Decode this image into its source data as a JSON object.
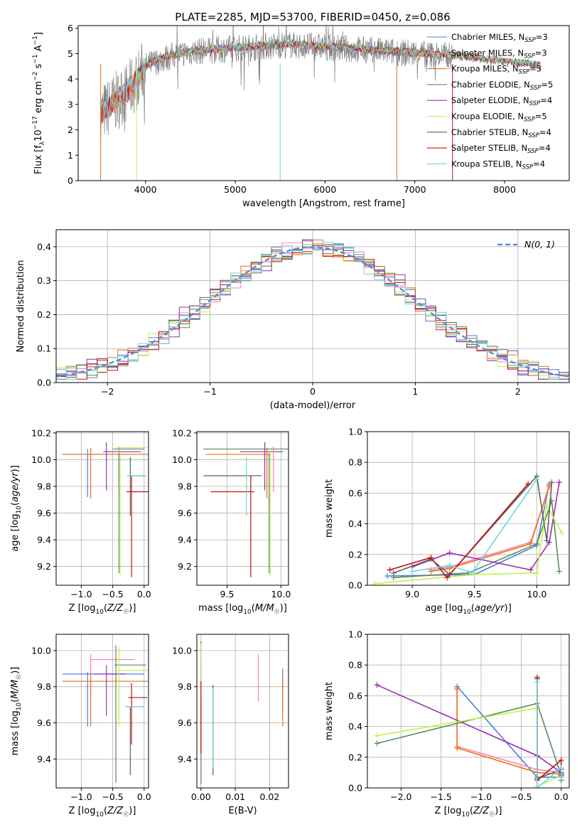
{
  "figure": {
    "title": "PLATE=2285, MJD=53700, FIBERID=0450, z=0.086"
  },
  "colors": {
    "chabrier_miles": "#4a7fdc",
    "salpeter_miles": "#ff80b0",
    "kroupa_miles": "#e8731a",
    "chabrier_elodie": "#5a8a5a",
    "salpeter_elodie": "#9a2db5",
    "kroupa_elodie": "#c8ef4c",
    "chabrier_stelib": "#606060",
    "salpeter_stelib": "#c01010",
    "kroupa_stelib": "#6ed8e0",
    "normal_curve": "#5b8ed8",
    "grid": "#b0b0b0"
  },
  "chart_data": [
    {
      "id": "spectrum",
      "type": "line",
      "xlabel": "wavelength [Angstrom, rest frame]",
      "ylabel": "Flux [f_λ10^-17 erg cm^-2 s^-1 A^-1]",
      "xlim": [
        3250,
        8720
      ],
      "ylim": [
        0,
        6.1
      ],
      "xticks": [
        4000,
        5000,
        6000,
        7000,
        8000
      ],
      "yticks": [
        0,
        1,
        2,
        3,
        4,
        5,
        6
      ],
      "grid": false,
      "legend_position": "upper-right",
      "legend": [
        {
          "label": "Chabrier MILES, N",
          "sub": "SSP",
          "suffix": "=3",
          "key": "chabrier_miles"
        },
        {
          "label": "Salpeter MILES, N",
          "sub": "SSP",
          "suffix": "=3",
          "key": "salpeter_miles"
        },
        {
          "label": "Kroupa MILES, N",
          "sub": "SSP",
          "suffix": "=3",
          "key": "kroupa_miles"
        },
        {
          "label": "Chabrier ELODIE, N",
          "sub": "SSP",
          "suffix": "=5",
          "key": "chabrier_elodie"
        },
        {
          "label": "Salpeter ELODIE, N",
          "sub": "SSP",
          "suffix": "=4",
          "key": "salpeter_elodie"
        },
        {
          "label": "Kroupa ELODIE, N",
          "sub": "SSP",
          "suffix": "=5",
          "key": "kroupa_elodie"
        },
        {
          "label": "Chabrier STELIB, N",
          "sub": "SSP",
          "suffix": "=4",
          "key": "chabrier_stelib"
        },
        {
          "label": "Salpeter STELIB, N",
          "sub": "SSP",
          "suffix": "=4",
          "key": "salpeter_stelib"
        },
        {
          "label": "Kroupa STELIB, N",
          "sub": "SSP",
          "suffix": "=4",
          "key": "kroupa_stelib"
        }
      ],
      "continuum": {
        "x": [
          3500,
          3600,
          3700,
          3800,
          3900,
          4000,
          4200,
          4400,
          4600,
          4800,
          5000,
          5200,
          5400,
          5600,
          5800,
          6000,
          6200,
          6400,
          6600,
          6800,
          7000,
          7200,
          7400,
          7600,
          7800,
          8000,
          8200,
          8400
        ],
        "y": [
          2.6,
          2.9,
          3.2,
          3.5,
          3.9,
          4.5,
          4.8,
          5.0,
          5.1,
          5.15,
          5.2,
          5.25,
          5.3,
          5.35,
          5.3,
          5.25,
          5.2,
          5.15,
          5.1,
          5.05,
          5.0,
          4.95,
          4.9,
          4.85,
          4.75,
          4.65,
          4.6,
          4.5
        ]
      }
    },
    {
      "id": "residuals",
      "type": "bar",
      "xlabel": "(data-model)/error",
      "ylabel": "Normed distribution",
      "xlim": [
        -2.5,
        2.5
      ],
      "ylim": [
        0,
        0.45
      ],
      "xticks": [
        -2,
        -1,
        0,
        1,
        2
      ],
      "yticks": [
        0.0,
        0.1,
        0.2,
        0.3,
        0.4
      ],
      "grid": true,
      "legend_position": "upper-right",
      "legend_label": "N(0, 1)"
    },
    {
      "id": "age_vs_Z",
      "type": "scatter",
      "xlabel": "Z [log10(Z/Z☉)]",
      "ylabel": "age [log10(age/yr)]",
      "xlim": [
        -1.4,
        0.07
      ],
      "ylim": [
        9.06,
        10.21
      ],
      "xticks": [
        -1.0,
        -0.5,
        0.0
      ],
      "yticks": [
        9.2,
        9.4,
        9.6,
        9.8,
        10.0,
        10.2
      ],
      "grid": true,
      "points": [
        {
          "key": "chabrier_miles",
          "x": -0.65,
          "xerr": 0.65,
          "y": 10.04,
          "yerr": 0.0
        },
        {
          "key": "chabrier_miles",
          "x": -0.9,
          "xerr": 0.0,
          "y": 9.9,
          "yerr": 0.18
        },
        {
          "key": "salpeter_miles",
          "x": -0.4,
          "xerr": 0.0,
          "y": 9.93,
          "yerr": 0.17
        },
        {
          "key": "kroupa_miles",
          "x": -0.55,
          "xerr": 0.75,
          "y": 10.04,
          "yerr": 0.0
        },
        {
          "key": "kroupa_miles",
          "x": -0.85,
          "xerr": 0.0,
          "y": 9.9,
          "yerr": 0.19
        },
        {
          "key": "chabrier_elodie",
          "x": -0.4,
          "xerr": 0.0,
          "y": 9.6,
          "yerr": 0.45
        },
        {
          "key": "chabrier_elodie",
          "x": -0.25,
          "xerr": 0.25,
          "y": 10.08,
          "yerr": 0.0
        },
        {
          "key": "salpeter_elodie",
          "x": -0.6,
          "xerr": 0.0,
          "y": 9.95,
          "yerr": 0.18
        },
        {
          "key": "salpeter_elodie",
          "x": -0.35,
          "xerr": 0.3,
          "y": 10.06,
          "yerr": 0.0
        },
        {
          "key": "kroupa_elodie",
          "x": -0.38,
          "xerr": 0.0,
          "y": 9.6,
          "yerr": 0.47
        },
        {
          "key": "kroupa_elodie",
          "x": -0.2,
          "xerr": 0.25,
          "y": 10.09,
          "yerr": 0.0
        },
        {
          "key": "chabrier_stelib",
          "x": -0.22,
          "xerr": 0.0,
          "y": 9.8,
          "yerr": 0.22
        },
        {
          "key": "chabrier_stelib",
          "x": -0.12,
          "xerr": 0.15,
          "y": 9.88,
          "yerr": 0.0
        },
        {
          "key": "salpeter_stelib",
          "x": -0.2,
          "xerr": 0.0,
          "y": 9.5,
          "yerr": 0.38
        },
        {
          "key": "salpeter_stelib",
          "x": -0.1,
          "xerr": 0.18,
          "y": 9.76,
          "yerr": 0.0
        },
        {
          "key": "kroupa_stelib",
          "x": -0.12,
          "xerr": 0.15,
          "y": 9.88,
          "yerr": 0.0
        }
      ]
    },
    {
      "id": "age_vs_mass",
      "type": "scatter",
      "xlabel": "mass [log10(M/M☉)]",
      "ylabel": "",
      "xlim": [
        9.22,
        10.07
      ],
      "ylim": [
        9.06,
        10.21
      ],
      "xticks": [
        9.5,
        10.0
      ],
      "yticks": [
        9.2,
        9.4,
        9.6,
        9.8,
        10.0,
        10.2
      ],
      "grid": true,
      "points": [
        {
          "key": "chabrier_elodie",
          "x": 9.68,
          "xerr": 0.4,
          "y": 10.08,
          "yerr": 0.0
        },
        {
          "key": "salpeter_elodie",
          "x": 9.82,
          "xerr": 0.2,
          "y": 10.06,
          "yerr": 0.0
        },
        {
          "key": "kroupa_miles",
          "x": 9.6,
          "xerr": 0.3,
          "y": 10.04,
          "yerr": 0.0
        },
        {
          "key": "chabrier_stelib",
          "x": 9.55,
          "xerr": 0.27,
          "y": 9.88,
          "yerr": 0.0
        },
        {
          "key": "salpeter_stelib",
          "x": 9.55,
          "xerr": 0.2,
          "y": 9.76,
          "yerr": 0.0
        },
        {
          "key": "kroupa_stelib",
          "x": 9.68,
          "xerr": 0.0,
          "y": 9.8,
          "yerr": 0.22
        },
        {
          "key": "salpeter_stelib",
          "x": 9.72,
          "xerr": 0.0,
          "y": 9.5,
          "yerr": 0.38
        },
        {
          "key": "kroupa_miles",
          "x": 9.87,
          "xerr": 0.0,
          "y": 9.9,
          "yerr": 0.19
        },
        {
          "key": "salpeter_elodie",
          "x": 9.85,
          "xerr": 0.0,
          "y": 9.95,
          "yerr": 0.18
        },
        {
          "key": "chabrier_elodie",
          "x": 9.89,
          "xerr": 0.0,
          "y": 9.6,
          "yerr": 0.45
        },
        {
          "key": "kroupa_elodie",
          "x": 9.9,
          "xerr": 0.0,
          "y": 9.6,
          "yerr": 0.47
        },
        {
          "key": "salpeter_miles",
          "x": 9.93,
          "xerr": 0.0,
          "y": 9.93,
          "yerr": 0.17
        }
      ]
    },
    {
      "id": "massweight_vs_age",
      "type": "line",
      "xlabel": "age [log10(age/yr)]",
      "ylabel": "mass weight",
      "xlim": [
        8.64,
        10.26
      ],
      "ylim": [
        0.0,
        1.0
      ],
      "xticks": [
        9.0,
        9.5,
        10.0
      ],
      "yticks": [
        0.0,
        0.2,
        0.4,
        0.6,
        0.8,
        1.0
      ],
      "grid": true,
      "series": [
        {
          "key": "chabrier_miles",
          "x": [
            8.8,
            9.5,
            10.0,
            10.1
          ],
          "y": [
            0.06,
            0.07,
            0.26,
            0.66
          ]
        },
        {
          "key": "salpeter_miles",
          "x": [
            9.15,
            9.3,
            9.95,
            10.1
          ],
          "y": [
            0.1,
            0.12,
            0.28,
            0.64
          ]
        },
        {
          "key": "kroupa_miles",
          "x": [
            9.15,
            9.3,
            9.95,
            10.1
          ],
          "y": [
            0.09,
            0.11,
            0.27,
            0.65
          ]
        },
        {
          "key": "chabrier_elodie",
          "x": [
            8.85,
            9.45,
            10.0,
            10.12,
            10.18
          ],
          "y": [
            0.05,
            0.08,
            0.27,
            0.55,
            0.09
          ]
        },
        {
          "key": "salpeter_elodie",
          "x": [
            9.0,
            9.3,
            9.95,
            10.1,
            10.18
          ],
          "y": [
            0.12,
            0.21,
            0.1,
            0.28,
            0.67
          ]
        },
        {
          "key": "kroupa_elodie",
          "x": [
            8.7,
            9.5,
            10.0,
            10.08,
            10.2
          ],
          "y": [
            0.01,
            0.07,
            0.08,
            0.52,
            0.34
          ]
        },
        {
          "key": "chabrier_stelib",
          "x": [
            8.85,
            9.15,
            9.3,
            10.0,
            10.08,
            10.12
          ],
          "y": [
            0.08,
            0.17,
            0.07,
            0.71,
            0.29,
            0.67
          ]
        },
        {
          "key": "salpeter_stelib",
          "x": [
            8.82,
            9.15,
            9.28,
            9.93
          ],
          "y": [
            0.1,
            0.18,
            0.05,
            0.66
          ]
        },
        {
          "key": "kroupa_stelib",
          "x": [
            9.0,
            9.3,
            9.48,
            10.0
          ],
          "y": [
            0.09,
            0.13,
            0.08,
            0.69
          ]
        }
      ]
    },
    {
      "id": "mass_vs_Z",
      "type": "scatter",
      "xlabel": "Z [log10(Z/Z☉)]",
      "ylabel": "mass [log10(M/M☉)]",
      "xlim": [
        -1.4,
        0.07
      ],
      "ylim": [
        9.24,
        10.09
      ],
      "xticks": [
        -1.0,
        -0.5,
        0.0
      ],
      "yticks": [
        9.4,
        9.6,
        9.8,
        10.0
      ],
      "grid": true,
      "points": [
        {
          "key": "chabrier_miles",
          "x": -0.65,
          "xerr": 0.65,
          "y": 9.87,
          "yerr": 0.0
        },
        {
          "key": "chabrier_miles",
          "x": -0.9,
          "xerr": 0.0,
          "y": 9.73,
          "yerr": 0.15
        },
        {
          "key": "salpeter_miles",
          "x": -0.5,
          "xerr": 0.35,
          "y": 9.95,
          "yerr": 0.0
        },
        {
          "key": "salpeter_miles",
          "x": -0.85,
          "xerr": 0.0,
          "y": 9.86,
          "yerr": 0.12
        },
        {
          "key": "kroupa_miles",
          "x": -0.55,
          "xerr": 0.75,
          "y": 9.83,
          "yerr": 0.0
        },
        {
          "key": "kroupa_miles",
          "x": -0.85,
          "xerr": 0.0,
          "y": 9.73,
          "yerr": 0.15
        },
        {
          "key": "chabrier_elodie",
          "x": -0.22,
          "xerr": 0.25,
          "y": 9.92,
          "yerr": 0.0
        },
        {
          "key": "chabrier_elodie",
          "x": -0.45,
          "xerr": 0.0,
          "y": 9.65,
          "yerr": 0.38
        },
        {
          "key": "salpeter_elodie",
          "x": -0.6,
          "xerr": 0.0,
          "y": 9.78,
          "yerr": 0.14
        },
        {
          "key": "salpeter_elodie",
          "x": -0.55,
          "xerr": 0.25,
          "y": 9.87,
          "yerr": 0.0
        },
        {
          "key": "kroupa_elodie",
          "x": -0.4,
          "xerr": 0.0,
          "y": 9.8,
          "yerr": 0.22
        },
        {
          "key": "kroupa_elodie",
          "x": -0.15,
          "xerr": 0.3,
          "y": 9.89,
          "yerr": 0.0
        },
        {
          "key": "chabrier_stelib",
          "x": -0.15,
          "xerr": 0.15,
          "y": 9.69,
          "yerr": 0.0
        },
        {
          "key": "chabrier_stelib",
          "x": -0.22,
          "xerr": 0.0,
          "y": 9.5,
          "yerr": 0.19
        },
        {
          "key": "salpeter_stelib",
          "x": -0.1,
          "xerr": 0.15,
          "y": 9.74,
          "yerr": 0.0
        },
        {
          "key": "salpeter_stelib",
          "x": -0.2,
          "xerr": 0.0,
          "y": 9.65,
          "yerr": 0.17
        },
        {
          "key": "kroupa_stelib",
          "x": -0.15,
          "xerr": 0.15,
          "y": 9.69,
          "yerr": 0.0
        }
      ]
    },
    {
      "id": "mass_vs_ebv",
      "type": "scatter",
      "xlabel": "E(B-V)",
      "ylabel": "",
      "xlim": [
        -0.0012,
        0.0255
      ],
      "ylim": [
        9.24,
        10.09
      ],
      "xticks": [
        0.0,
        0.01,
        0.02
      ],
      "yticks": [
        9.4,
        9.6,
        9.8,
        10.0
      ],
      "grid": true,
      "points": [
        {
          "key": "chabrier_elodie",
          "x": 0.0,
          "xerr": 0.0,
          "y": 9.6,
          "yerr": 0.34
        },
        {
          "key": "salpeter_elodie",
          "x": 0.0,
          "xerr": 0.0,
          "y": 9.92,
          "yerr": 0.13
        },
        {
          "key": "kroupa_elodie",
          "x": 0.0,
          "xerr": 0.0,
          "y": 9.88,
          "yerr": 0.16
        },
        {
          "key": "salpeter_stelib",
          "x": 0.0,
          "xerr": 0.0,
          "y": 9.63,
          "yerr": 0.2
        },
        {
          "key": "chabrier_stelib",
          "x": 0.0035,
          "xerr": 0.0,
          "y": 9.56,
          "yerr": 0.25
        },
        {
          "key": "kroupa_stelib",
          "x": 0.0035,
          "xerr": 0.0,
          "y": 9.57,
          "yerr": 0.22
        },
        {
          "key": "salpeter_miles",
          "x": 0.0167,
          "xerr": 0.0,
          "y": 9.85,
          "yerr": 0.13
        },
        {
          "key": "chabrier_miles",
          "x": 0.0238,
          "xerr": 0.0,
          "y": 9.78,
          "yerr": 0.12
        },
        {
          "key": "kroupa_miles",
          "x": 0.0238,
          "xerr": 0.0,
          "y": 9.72,
          "yerr": 0.14
        }
      ]
    },
    {
      "id": "massweight_vs_Z",
      "type": "line",
      "xlabel": "Z [log10(Z/Z☉)]",
      "ylabel": "mass weight",
      "xlim": [
        -2.42,
        0.1
      ],
      "ylim": [
        0.0,
        1.0
      ],
      "xticks": [
        -2.0,
        -1.5,
        -1.0,
        -0.5,
        0.0
      ],
      "yticks": [
        0.0,
        0.2,
        0.4,
        0.6,
        0.8,
        1.0
      ],
      "grid": true,
      "series": [
        {
          "key": "chabrier_miles",
          "x": [
            -1.3,
            -0.3,
            0.0
          ],
          "y": [
            0.66,
            0.07,
            0.07
          ]
        },
        {
          "key": "salpeter_miles",
          "x": [
            -1.3,
            -1.3,
            -0.3,
            0.0
          ],
          "y": [
            0.64,
            0.27,
            0.12,
            0.1
          ]
        },
        {
          "key": "kroupa_miles",
          "x": [
            -1.3,
            -1.3,
            -0.3,
            0.0
          ],
          "y": [
            0.65,
            0.26,
            0.1,
            0.09
          ]
        },
        {
          "key": "chabrier_elodie",
          "x": [
            -2.3,
            -0.3,
            0.0,
            0.0
          ],
          "y": [
            0.29,
            0.55,
            0.08,
            0.05
          ]
        },
        {
          "key": "salpeter_elodie",
          "x": [
            -2.3,
            -0.3,
            0.0
          ],
          "y": [
            0.67,
            0.21,
            0.1
          ]
        },
        {
          "key": "kroupa_elodie",
          "x": [
            -2.3,
            -0.3,
            -0.3,
            0.0
          ],
          "y": [
            0.34,
            0.52,
            0.01,
            0.08
          ]
        },
        {
          "key": "chabrier_stelib",
          "x": [
            -0.3,
            -0.3,
            0.0,
            0.0
          ],
          "y": [
            0.71,
            0.06,
            0.12,
            0.08
          ]
        },
        {
          "key": "salpeter_stelib",
          "x": [
            -0.3,
            -0.3,
            0.0,
            0.0
          ],
          "y": [
            0.72,
            0.05,
            0.18,
            0.09
          ]
        },
        {
          "key": "kroupa_stelib",
          "x": [
            -0.3,
            -0.3,
            0.0,
            0.0
          ],
          "y": [
            0.69,
            0.0,
            0.13,
            0.07
          ]
        }
      ]
    }
  ]
}
